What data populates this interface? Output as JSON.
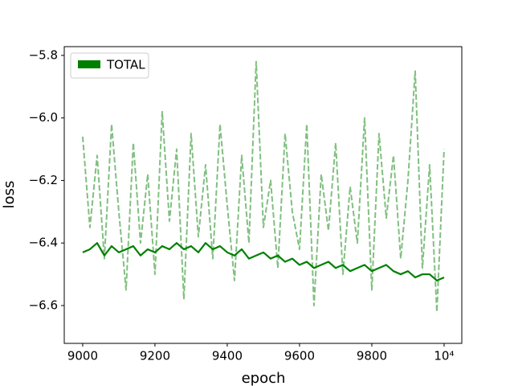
{
  "chart_data": {
    "type": "line",
    "x_label": "epoch",
    "y_label": "loss",
    "x": [
      9000,
      9020,
      9040,
      9060,
      9080,
      9100,
      9120,
      9140,
      9160,
      9180,
      9200,
      9220,
      9240,
      9260,
      9280,
      9300,
      9320,
      9340,
      9360,
      9380,
      9400,
      9420,
      9440,
      9460,
      9480,
      9500,
      9520,
      9540,
      9560,
      9580,
      9600,
      9620,
      9640,
      9660,
      9680,
      9700,
      9720,
      9740,
      9760,
      9780,
      9800,
      9820,
      9840,
      9860,
      9880,
      9900,
      9920,
      9940,
      9960,
      9980,
      10000
    ],
    "series": [
      {
        "color": "#80c080",
        "dashed": true,
        "values": [
          -6.06,
          -6.35,
          -6.12,
          -6.45,
          -6.02,
          -6.3,
          -6.55,
          -6.08,
          -6.4,
          -6.18,
          -6.5,
          -5.98,
          -6.33,
          -6.1,
          -6.58,
          -6.05,
          -6.38,
          -6.15,
          -6.45,
          -6.02,
          -6.28,
          -6.52,
          -6.12,
          -6.4,
          -5.82,
          -6.35,
          -6.2,
          -6.48,
          -6.05,
          -6.3,
          -6.42,
          -6.02,
          -6.6,
          -6.18,
          -6.36,
          -6.08,
          -6.5,
          -6.22,
          -6.4,
          -6.0,
          -6.55,
          -6.05,
          -6.32,
          -6.12,
          -6.45,
          -6.2,
          -5.85,
          -6.48,
          -6.15,
          -6.62,
          -6.1
        ]
      },
      {
        "name": "TOTAL",
        "color": "#008000",
        "values": [
          -6.43,
          -6.42,
          -6.4,
          -6.44,
          -6.41,
          -6.43,
          -6.42,
          -6.41,
          -6.44,
          -6.42,
          -6.43,
          -6.41,
          -6.42,
          -6.4,
          -6.42,
          -6.41,
          -6.43,
          -6.4,
          -6.42,
          -6.41,
          -6.43,
          -6.44,
          -6.42,
          -6.45,
          -6.44,
          -6.43,
          -6.45,
          -6.44,
          -6.46,
          -6.45,
          -6.47,
          -6.46,
          -6.48,
          -6.47,
          -6.46,
          -6.48,
          -6.47,
          -6.49,
          -6.48,
          -6.47,
          -6.49,
          -6.48,
          -6.47,
          -6.49,
          -6.5,
          -6.49,
          -6.51,
          -6.5,
          -6.5,
          -6.52,
          -6.51
        ]
      }
    ],
    "xlim": [
      8949,
      10049
    ],
    "xticks": [
      9000,
      9200,
      9400,
      9600,
      9800,
      {
        "value": 10000,
        "label": "10⁴"
      }
    ],
    "ylim": [
      -6.721,
      -5.772
    ],
    "yticks": [
      {
        "value": -5.8,
        "label": "−5.8"
      },
      {
        "value": -6.0,
        "label": "−6.0"
      },
      {
        "value": -6.2,
        "label": "−6.2"
      },
      {
        "value": -6.4,
        "label": "−6.4"
      },
      {
        "value": -6.6,
        "label": "−6.6"
      }
    ],
    "legend": "upper left",
    "grid": false
  }
}
